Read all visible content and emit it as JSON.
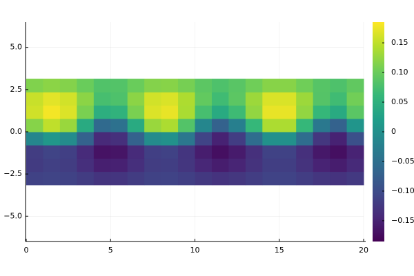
{
  "chart_data": {
    "type": "heatmap",
    "x": [
      0.5,
      1.5,
      2.5,
      3.5,
      4.5,
      5.5,
      6.5,
      7.5,
      8.5,
      9.5,
      10.5,
      11.5,
      12.5,
      13.5,
      14.5,
      15.5,
      16.5,
      17.5,
      18.5,
      19.5
    ],
    "y": [
      -2.75,
      -1.96,
      -1.18,
      -0.39,
      0.39,
      1.18,
      1.96,
      2.75
    ],
    "z": [
      [
        -0.113,
        -0.11,
        -0.112,
        -0.12,
        -0.129,
        -0.128,
        -0.12,
        -0.112,
        -0.111,
        -0.116,
        -0.125,
        -0.13,
        -0.126,
        -0.118,
        -0.111,
        -0.111,
        -0.118,
        -0.127,
        -0.13,
        -0.123
      ],
      [
        -0.121,
        -0.115,
        -0.119,
        -0.135,
        -0.153,
        -0.151,
        -0.135,
        -0.119,
        -0.117,
        -0.127,
        -0.145,
        -0.155,
        -0.147,
        -0.131,
        -0.117,
        -0.117,
        -0.131,
        -0.149,
        -0.155,
        -0.141
      ],
      [
        -0.119,
        -0.11,
        -0.116,
        -0.14,
        -0.167,
        -0.164,
        -0.14,
        -0.116,
        -0.113,
        -0.128,
        -0.155,
        -0.17,
        -0.158,
        -0.134,
        -0.113,
        -0.113,
        -0.134,
        -0.161,
        -0.17,
        -0.149
      ],
      [
        -0.014,
        0.01,
        -0.006,
        -0.07,
        -0.142,
        -0.134,
        -0.07,
        -0.006,
        0.002,
        -0.038,
        -0.11,
        -0.15,
        -0.118,
        -0.054,
        0.002,
        0.002,
        -0.054,
        -0.126,
        -0.15,
        -0.094
      ],
      [
        0.117,
        0.15,
        0.128,
        0.04,
        -0.059,
        -0.048,
        0.04,
        0.128,
        0.139,
        0.084,
        -0.015,
        -0.07,
        -0.026,
        0.062,
        0.139,
        0.139,
        0.062,
        -0.037,
        -0.07,
        0.007
      ],
      [
        0.159,
        0.18,
        0.166,
        0.11,
        0.047,
        0.054,
        0.11,
        0.166,
        0.173,
        0.138,
        0.075,
        0.04,
        0.068,
        0.124,
        0.173,
        0.173,
        0.124,
        0.061,
        0.04,
        0.089
      ],
      [
        0.155,
        0.17,
        0.16,
        0.12,
        0.075,
        0.08,
        0.12,
        0.16,
        0.165,
        0.14,
        0.095,
        0.07,
        0.09,
        0.13,
        0.165,
        0.165,
        0.13,
        0.085,
        0.07,
        0.105
      ],
      [
        0.114,
        0.12,
        0.116,
        0.1,
        0.082,
        0.084,
        0.1,
        0.116,
        0.118,
        0.108,
        0.09,
        0.08,
        0.088,
        0.104,
        0.118,
        0.118,
        0.104,
        0.086,
        0.08,
        0.094
      ]
    ],
    "xlim": [
      0,
      20
    ],
    "xticks": [
      0,
      5,
      10,
      15,
      20
    ],
    "ylim": [
      -6.5,
      6.5
    ],
    "yticks": [
      {
        "value": -5,
        "label": "−5.0"
      },
      {
        "value": -2.5,
        "label": "−2.5"
      },
      {
        "value": 0,
        "label": "0.0"
      },
      {
        "value": 2.5,
        "label": "2.5"
      },
      {
        "value": 5,
        "label": "5.0"
      }
    ],
    "clim": [
      -0.185,
      0.185
    ],
    "cticks": [
      {
        "value": -0.15,
        "label": "−0.15"
      },
      {
        "value": -0.1,
        "label": "−0.10"
      },
      {
        "value": -0.05,
        "label": "−0.05"
      },
      0,
      {
        "value": 0.05,
        "label": "0.05"
      },
      {
        "value": 0.1,
        "label": "0.10"
      },
      {
        "value": 0.15,
        "label": "0.15"
      }
    ],
    "colormap": "viridis",
    "grid": true
  }
}
